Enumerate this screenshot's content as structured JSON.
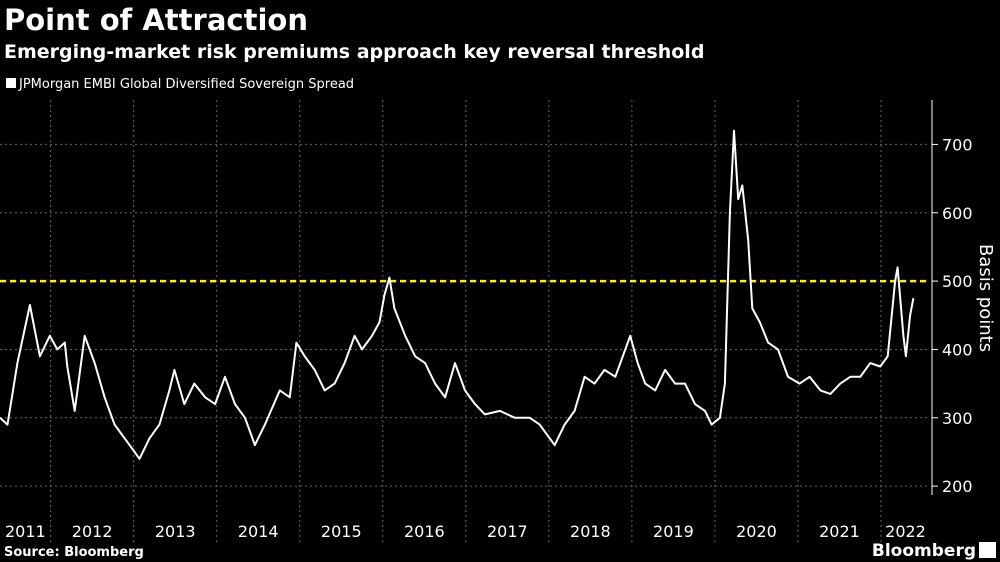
{
  "chart_data": {
    "type": "line",
    "title": "Point of Attraction",
    "subtitle": "Emerging-market risk premiums approach key reversal threshold",
    "y_label": "Basis points",
    "source": "Source: Bloomberg",
    "brand": "Bloomberg",
    "threshold": 500,
    "threshold_color": "#ffee00",
    "xlim": [
      2011.39,
      2022.59
    ],
    "xticks": [
      2011,
      2012,
      2013,
      2014,
      2015,
      2016,
      2017,
      2018,
      2019,
      2020,
      2021,
      2022
    ],
    "ylim": [
      187,
      765
    ],
    "yticks": [
      200,
      300,
      400,
      500,
      600,
      700
    ],
    "grid": true,
    "series": [
      {
        "name": "JPMorgan EMBI Global Diversified Sovereign Spread",
        "color": "#ffffff",
        "x": [
          2011.39,
          2011.48,
          2011.6,
          2011.75,
          2011.87,
          2011.99,
          2012.08,
          2012.17,
          2012.2,
          2012.29,
          2012.41,
          2012.53,
          2012.65,
          2012.77,
          2012.89,
          2013.01,
          2013.07,
          2013.19,
          2013.31,
          2013.43,
          2013.49,
          2013.61,
          2013.73,
          2013.86,
          2013.98,
          2014.1,
          2014.22,
          2014.34,
          2014.46,
          2014.58,
          2014.76,
          2014.88,
          2014.96,
          2015.06,
          2015.18,
          2015.3,
          2015.42,
          2015.54,
          2015.66,
          2015.75,
          2015.87,
          2015.96,
          2016.02,
          2016.08,
          2016.14,
          2016.27,
          2016.39,
          2016.51,
          2016.63,
          2016.75,
          2016.87,
          2016.99,
          2017.11,
          2017.23,
          2017.41,
          2017.59,
          2017.77,
          2017.89,
          2018.01,
          2018.07,
          2018.19,
          2018.31,
          2018.43,
          2018.55,
          2018.67,
          2018.8,
          2018.92,
          2018.98,
          2019.07,
          2019.16,
          2019.28,
          2019.4,
          2019.52,
          2019.64,
          2019.76,
          2019.88,
          2019.96,
          2020.06,
          2020.12,
          2020.18,
          2020.23,
          2020.28,
          2020.33,
          2020.4,
          2020.45,
          2020.54,
          2020.64,
          2020.76,
          2020.88,
          2021.02,
          2021.14,
          2021.27,
          2021.39,
          2021.51,
          2021.63,
          2021.75,
          2021.87,
          2021.99,
          2022.08,
          2022.17,
          2022.2,
          2022.27,
          2022.3,
          2022.35,
          2022.39
        ],
        "values": [
          300,
          290,
          380,
          465,
          390,
          420,
          400,
          410,
          375,
          310,
          420,
          380,
          330,
          290,
          270,
          250,
          240,
          270,
          290,
          340,
          370,
          320,
          350,
          330,
          320,
          360,
          320,
          300,
          260,
          290,
          340,
          330,
          410,
          390,
          370,
          340,
          350,
          380,
          420,
          400,
          420,
          440,
          480,
          505,
          460,
          420,
          390,
          380,
          350,
          330,
          380,
          340,
          320,
          305,
          310,
          300,
          300,
          290,
          270,
          260,
          290,
          310,
          360,
          350,
          370,
          360,
          400,
          420,
          380,
          350,
          340,
          370,
          350,
          350,
          320,
          310,
          290,
          300,
          350,
          600,
          720,
          620,
          640,
          560,
          460,
          440,
          410,
          400,
          360,
          350,
          360,
          340,
          335,
          350,
          360,
          360,
          380,
          375,
          390,
          500,
          520,
          420,
          390,
          450,
          475
        ]
      }
    ]
  }
}
